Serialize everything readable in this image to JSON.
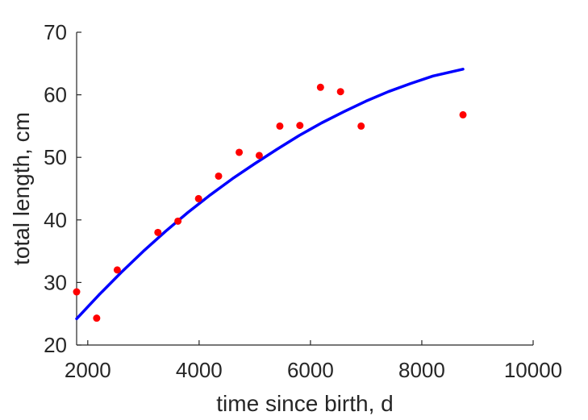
{
  "chart_data": {
    "type": "scatter",
    "xlabel": "time since birth, d",
    "ylabel": "total length, cm",
    "xlim": [
      1800,
      10000
    ],
    "ylim": [
      20,
      70
    ],
    "x_ticks": [
      "2000",
      "4000",
      "6000",
      "8000",
      "10000"
    ],
    "y_ticks": [
      "20",
      "30",
      "40",
      "50",
      "60",
      "70"
    ],
    "grid": false,
    "legend": "none",
    "colors": {
      "points": "#ff0000",
      "line": "#0000ff",
      "axis": "#262626"
    },
    "series": [
      {
        "kind": "scatter",
        "points": [
          {
            "x": 1800,
            "y": 28.5
          },
          {
            "x": 2160,
            "y": 24.3
          },
          {
            "x": 2530,
            "y": 32.0
          },
          {
            "x": 3260,
            "y": 38.0
          },
          {
            "x": 3620,
            "y": 39.8
          },
          {
            "x": 3990,
            "y": 43.4
          },
          {
            "x": 4350,
            "y": 47.0
          },
          {
            "x": 4720,
            "y": 50.8
          },
          {
            "x": 5080,
            "y": 50.3
          },
          {
            "x": 5450,
            "y": 55.0
          },
          {
            "x": 5810,
            "y": 55.1
          },
          {
            "x": 6180,
            "y": 61.2
          },
          {
            "x": 6540,
            "y": 60.5
          },
          {
            "x": 6910,
            "y": 55.0
          },
          {
            "x": 8740,
            "y": 56.8
          }
        ]
      },
      {
        "kind": "line",
        "points": [
          {
            "x": 1800,
            "y": 24.2
          },
          {
            "x": 2200,
            "y": 28.0
          },
          {
            "x": 2600,
            "y": 31.6
          },
          {
            "x": 3000,
            "y": 35.0
          },
          {
            "x": 3400,
            "y": 38.2
          },
          {
            "x": 3800,
            "y": 41.2
          },
          {
            "x": 4200,
            "y": 44.0
          },
          {
            "x": 4600,
            "y": 46.6
          },
          {
            "x": 5000,
            "y": 49.0
          },
          {
            "x": 5400,
            "y": 51.3
          },
          {
            "x": 5800,
            "y": 53.5
          },
          {
            "x": 6200,
            "y": 55.5
          },
          {
            "x": 6600,
            "y": 57.3
          },
          {
            "x": 7000,
            "y": 59.0
          },
          {
            "x": 7400,
            "y": 60.5
          },
          {
            "x": 7800,
            "y": 61.8
          },
          {
            "x": 8200,
            "y": 63.0
          },
          {
            "x": 8740,
            "y": 64.1
          }
        ]
      }
    ]
  }
}
